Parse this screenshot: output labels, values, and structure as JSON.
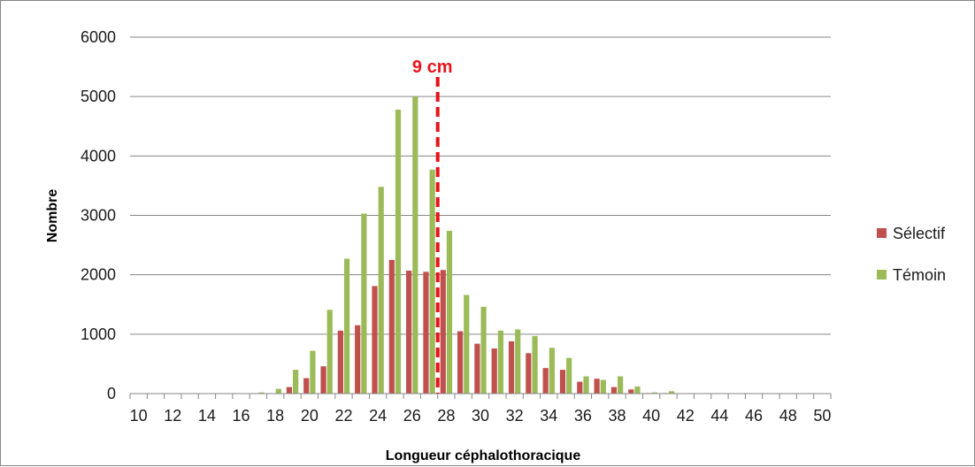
{
  "chart_data": {
    "type": "bar",
    "xlabel": "Longueur céphalothoracique",
    "ylabel": "Nombre",
    "ylim": [
      0,
      6000
    ],
    "yticks": [
      "0",
      "1000",
      "2000",
      "3000",
      "4000",
      "5000",
      "6000"
    ],
    "categories": [
      10,
      11,
      12,
      13,
      14,
      15,
      16,
      17,
      18,
      19,
      20,
      21,
      22,
      23,
      24,
      25,
      26,
      27,
      28,
      29,
      30,
      31,
      32,
      33,
      34,
      35,
      36,
      37,
      38,
      39,
      40,
      41,
      42,
      43,
      44,
      45,
      46,
      47,
      48,
      49,
      50
    ],
    "xtick_labels": [
      "10",
      "12",
      "14",
      "16",
      "18",
      "20",
      "22",
      "24",
      "26",
      "28",
      "30",
      "32",
      "34",
      "36",
      "38",
      "40",
      "42",
      "44",
      "46",
      "48",
      "50"
    ],
    "series": [
      {
        "name": "Sélectif",
        "color": "#c0504d",
        "values": [
          0,
          0,
          0,
          0,
          0,
          0,
          0,
          0,
          0,
          110,
          260,
          460,
          1060,
          1150,
          1810,
          2250,
          2070,
          2050,
          2080,
          1050,
          840,
          760,
          880,
          680,
          430,
          400,
          200,
          250,
          110,
          70,
          10,
          10,
          0,
          0,
          0,
          0,
          0,
          0,
          0,
          0,
          0
        ]
      },
      {
        "name": "Témoin",
        "color": "#9bbb59",
        "values": [
          0,
          0,
          0,
          0,
          0,
          0,
          0,
          20,
          80,
          400,
          720,
          1410,
          2270,
          3030,
          3480,
          4780,
          5000,
          3770,
          2740,
          1660,
          1460,
          1060,
          1080,
          970,
          770,
          600,
          290,
          230,
          290,
          120,
          20,
          40,
          0,
          0,
          0,
          0,
          0,
          0,
          0,
          0,
          0
        ]
      }
    ],
    "annotation": {
      "text": "9 cm",
      "x": 27.5,
      "color": "#e8131a",
      "style": "dashed"
    },
    "grid": true,
    "legend_position": "right"
  }
}
